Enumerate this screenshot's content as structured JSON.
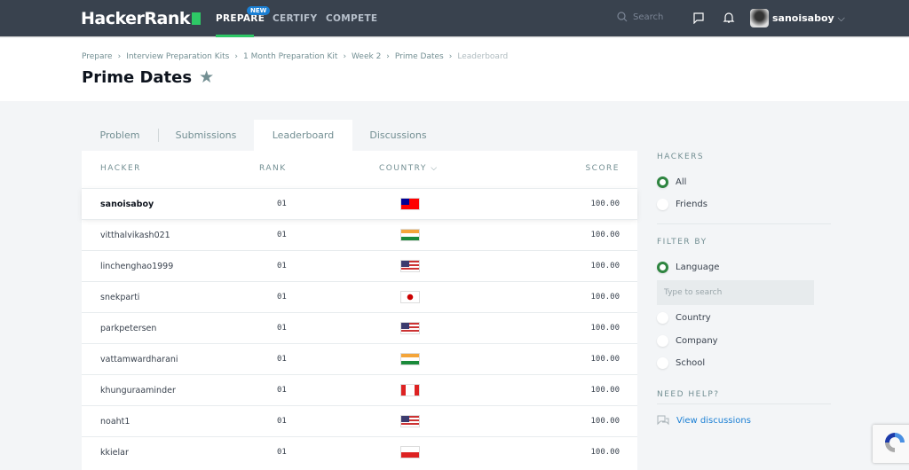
{
  "nav": {
    "logo": "HackerRank",
    "items": [
      "PREPARE",
      "CERTIFY",
      "COMPETE"
    ],
    "badge": "NEW",
    "search_placeholder": "Search",
    "username": "sanoisaboy"
  },
  "breadcrumb": [
    "Prepare",
    "Interview Preparation Kits",
    "1 Month Preparation Kit",
    "Week 2",
    "Prime Dates",
    "Leaderboard"
  ],
  "page_title": "Prime Dates",
  "tabs": [
    "Problem",
    "Submissions",
    "Leaderboard",
    "Discussions"
  ],
  "active_tab": "Leaderboard",
  "table": {
    "headers": [
      "HACKER",
      "RANK",
      "COUNTRY",
      "SCORE"
    ],
    "rows": [
      {
        "hacker": "sanoisaboy",
        "rank": "01",
        "country": "taiwan",
        "score": "100.00"
      },
      {
        "hacker": "vitthalvikash021",
        "rank": "01",
        "country": "india",
        "score": "100.00"
      },
      {
        "hacker": "linchenghao1999",
        "rank": "01",
        "country": "usa",
        "score": "100.00"
      },
      {
        "hacker": "snekparti",
        "rank": "01",
        "country": "japan",
        "score": "100.00"
      },
      {
        "hacker": "parkpetersen",
        "rank": "01",
        "country": "usa",
        "score": "100.00"
      },
      {
        "hacker": "vattamwardharani",
        "rank": "01",
        "country": "india",
        "score": "100.00"
      },
      {
        "hacker": "khunguraaminder",
        "rank": "01",
        "country": "canada",
        "score": "100.00"
      },
      {
        "hacker": "noaht1",
        "rank": "01",
        "country": "usa",
        "score": "100.00"
      },
      {
        "hacker": "kkielar",
        "rank": "01",
        "country": "poland",
        "score": "100.00"
      }
    ]
  },
  "sidebar": {
    "hackers_title": "HACKERS",
    "hackers_options": [
      "All",
      "Friends"
    ],
    "hackers_selected": "All",
    "filter_title": "FILTER BY",
    "filter_options": [
      "Language",
      "Country",
      "Company",
      "School"
    ],
    "filter_selected": "Language",
    "search_placeholder": "Type to search",
    "help_title": "NEED HELP?",
    "help_link": "View discussions"
  },
  "colors": {
    "nav_bg": "#39424e",
    "accent": "#2ec866",
    "link": "#1a7fd4"
  }
}
